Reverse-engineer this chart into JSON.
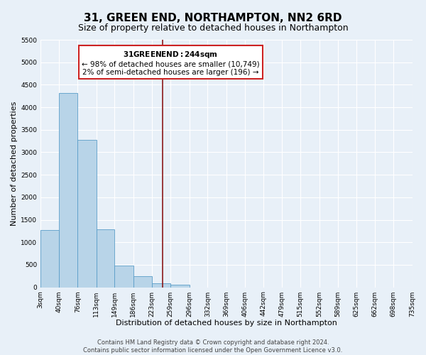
{
  "title": "31, GREEN END, NORTHAMPTON, NN2 6RD",
  "subtitle": "Size of property relative to detached houses in Northampton",
  "xlabel": "Distribution of detached houses by size in Northampton",
  "ylabel": "Number of detached properties",
  "footer_line1": "Contains HM Land Registry data © Crown copyright and database right 2024.",
  "footer_line2": "Contains public sector information licensed under the Open Government Licence v3.0.",
  "bar_edges": [
    3,
    40,
    76,
    113,
    149,
    186,
    223,
    259,
    296,
    332,
    369,
    406,
    442,
    479,
    515,
    552,
    589,
    625,
    662,
    698,
    735
  ],
  "bar_heights": [
    1270,
    4320,
    3280,
    1290,
    480,
    240,
    90,
    60,
    0,
    0,
    0,
    0,
    0,
    0,
    0,
    0,
    0,
    0,
    0,
    0
  ],
  "bar_color": "#b8d4e8",
  "bar_edge_color": "#5a9dc8",
  "property_line_x": 244,
  "property_line_color": "#8b1a1a",
  "ylim": [
    0,
    5500
  ],
  "yticks": [
    0,
    500,
    1000,
    1500,
    2000,
    2500,
    3000,
    3500,
    4000,
    4500,
    5000,
    5500
  ],
  "annotation_title": "31 GREEN END: 244sqm",
  "annotation_line1": "← 98% of detached houses are smaller (10,749)",
  "annotation_line2": "2% of semi-detached houses are larger (196) →",
  "annotation_box_color": "#ffffff",
  "annotation_box_edge": "#cc2222",
  "bg_color": "#e8f0f8",
  "plot_bg_color": "#e8f0f8",
  "grid_color": "#ffffff",
  "title_fontsize": 11,
  "subtitle_fontsize": 9,
  "xlabel_fontsize": 8,
  "ylabel_fontsize": 8,
  "tick_fontsize": 6.5,
  "annotation_title_fontsize": 8,
  "annotation_body_fontsize": 7.5,
  "footer_fontsize": 6
}
